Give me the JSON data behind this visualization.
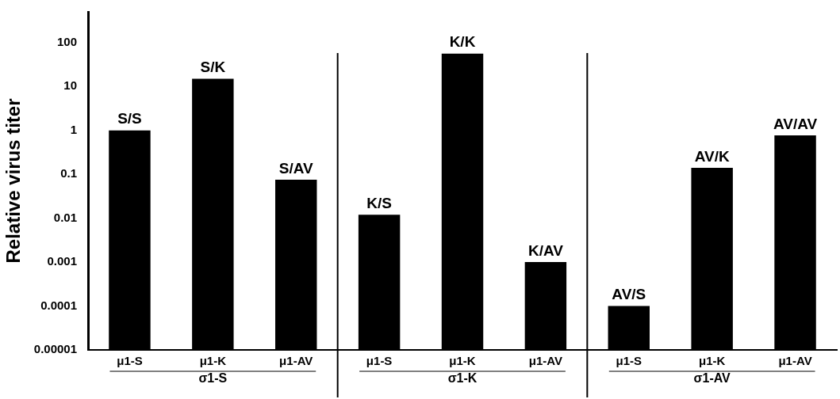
{
  "chart_data": {
    "type": "bar",
    "ylabel": "Relative virus titer",
    "categories": [
      "μ1-S",
      "μ1-K",
      "μ1-AV",
      "μ1-S",
      "μ1-K",
      "μ1-AV",
      "μ1-S",
      "μ1-K",
      "μ1-AV"
    ],
    "values": [
      1,
      15,
      0.075,
      0.012,
      56,
      0.001,
      0.0001,
      0.14,
      0.77
    ],
    "value_labels": [
      "S/S",
      "S/K",
      "S/AV",
      "K/S",
      "K/K",
      "K/AV",
      "AV/S",
      "AV/K",
      "AV/AV"
    ],
    "color": "#000000",
    "log": true,
    "ylim": [
      1e-05,
      500
    ],
    "yticks": [
      {
        "value": 1e-05,
        "label": "0.00001"
      },
      0.0001,
      0.001,
      0.01,
      0.1,
      1,
      10,
      100
    ],
    "annotations": [
      "σ1-S",
      "σ1-K",
      "σ1-AV"
    ],
    "grid": false,
    "legend": false
  }
}
